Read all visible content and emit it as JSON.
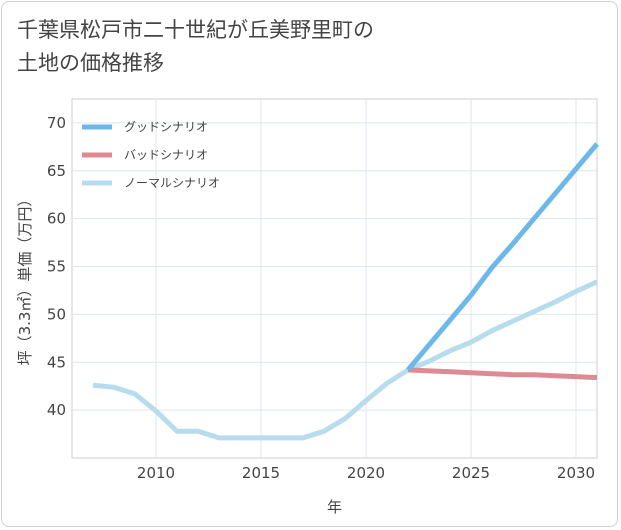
{
  "chart_data": {
    "type": "line",
    "title": "千葉県松戸市二十世紀が丘美野里町の土地の価格推移",
    "title_lines": [
      "千葉県松戸市二十世紀が丘美野里町の",
      "土地の価格推移"
    ],
    "xlabel": "年",
    "ylabel": "坪（3.3㎡）単価（万円）",
    "xlim": [
      2006,
      2031
    ],
    "ylim": [
      35,
      72.5
    ],
    "xticks": [
      2010,
      2015,
      2020,
      2025,
      2030
    ],
    "yticks": [
      40,
      45,
      50,
      55,
      60,
      65,
      70
    ],
    "grid": true,
    "legend_position": "top-left",
    "series": [
      {
        "name": "グッドシナリオ",
        "color": "#6cb8ea",
        "x": [
          2022,
          2023,
          2024,
          2025,
          2026,
          2027,
          2028,
          2029,
          2030,
          2031
        ],
        "y": [
          44.2,
          46.8,
          49.4,
          52.0,
          54.9,
          57.4,
          60.0,
          62.6,
          65.2,
          67.8
        ]
      },
      {
        "name": "バッドシナリオ",
        "color": "#dd8a92",
        "x": [
          2022,
          2023,
          2024,
          2025,
          2026,
          2027,
          2028,
          2029,
          2030,
          2031
        ],
        "y": [
          44.2,
          44.1,
          44.0,
          43.9,
          43.8,
          43.7,
          43.7,
          43.6,
          43.5,
          43.4
        ]
      },
      {
        "name": "ノーマルシナリオ",
        "color": "#b6dcee",
        "x": [
          2007,
          2008,
          2009,
          2010,
          2011,
          2012,
          2013,
          2014,
          2015,
          2016,
          2017,
          2018,
          2019,
          2020,
          2021,
          2022,
          2023,
          2024,
          2025,
          2026,
          2027,
          2028,
          2029,
          2030,
          2031
        ],
        "y": [
          42.6,
          42.4,
          41.7,
          39.9,
          37.8,
          37.8,
          37.1,
          37.1,
          37.1,
          37.1,
          37.1,
          37.8,
          39.1,
          41.0,
          42.8,
          44.2,
          45.1,
          46.2,
          47.1,
          48.3,
          49.3,
          50.3,
          51.3,
          52.4,
          53.4
        ]
      }
    ]
  }
}
